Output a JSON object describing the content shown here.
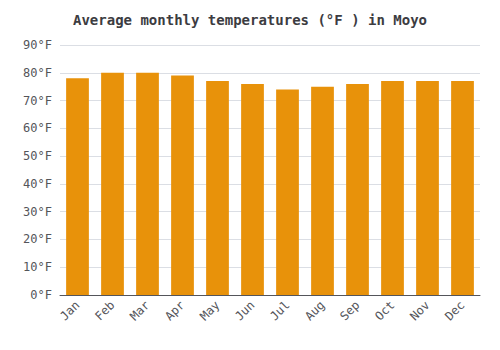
{
  "chart_data": {
    "type": "bar",
    "title": "Average monthly temperatures (°F ) in Moyo",
    "categories": [
      "Jan",
      "Feb",
      "Mar",
      "Apr",
      "May",
      "Jun",
      "Jul",
      "Aug",
      "Sep",
      "Oct",
      "Nov",
      "Dec"
    ],
    "values": [
      78,
      80,
      80,
      79,
      77,
      76,
      74,
      75,
      76,
      77,
      77,
      77
    ],
    "color": "#E8920A",
    "ylim": [
      0,
      90
    ],
    "yticks": [
      {
        "value": 0,
        "label": "0°F"
      },
      {
        "value": 10,
        "label": "10°F"
      },
      {
        "value": 20,
        "label": "20°F"
      },
      {
        "value": 30,
        "label": "30°F"
      },
      {
        "value": 40,
        "label": "40°F"
      },
      {
        "value": 50,
        "label": "50°F"
      },
      {
        "value": 60,
        "label": "60°F"
      },
      {
        "value": 70,
        "label": "70°F"
      },
      {
        "value": 80,
        "label": "80°F"
      },
      {
        "value": 90,
        "label": "90°F"
      }
    ],
    "grid": true
  }
}
